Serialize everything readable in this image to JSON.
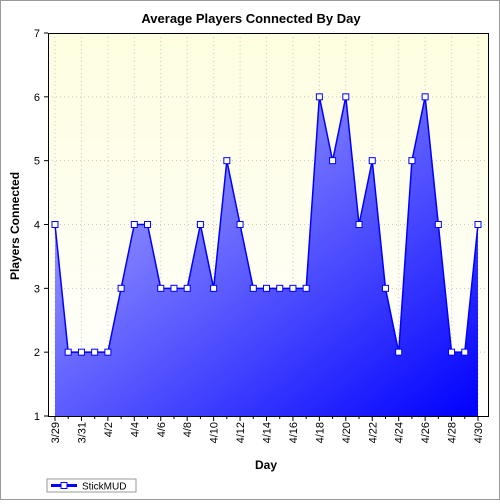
{
  "chart_data": {
    "type": "area",
    "title": "Average Players Connected By Day",
    "xlabel": "Day",
    "ylabel": "Players Connected",
    "ylim": [
      1,
      7
    ],
    "yticks": [
      1,
      2,
      3,
      4,
      5,
      6,
      7
    ],
    "x": [
      "3/29",
      "3/30",
      "3/31",
      "4/1",
      "4/2",
      "4/3",
      "4/4",
      "4/5",
      "4/6",
      "4/7",
      "4/8",
      "4/9",
      "4/10",
      "4/11",
      "4/12",
      "4/13",
      "4/14",
      "4/15",
      "4/16",
      "4/17",
      "4/18",
      "4/19",
      "4/20",
      "4/21",
      "4/22",
      "4/23",
      "4/24",
      "4/25",
      "4/26",
      "4/27",
      "4/28",
      "4/29",
      "4/30"
    ],
    "xtick_labels": [
      "3/29",
      "3/31",
      "4/2",
      "4/4",
      "4/6",
      "4/8",
      "4/10",
      "4/12",
      "4/14",
      "4/16",
      "4/18",
      "4/20",
      "4/22",
      "4/24",
      "4/26",
      "4/28",
      "4/30"
    ],
    "series": [
      {
        "name": "StickMUD",
        "values": [
          4,
          2,
          2,
          2,
          2,
          3,
          4,
          4,
          3,
          3,
          3,
          4,
          3,
          5,
          4,
          3,
          3,
          3,
          3,
          3,
          6,
          5,
          6,
          4,
          5,
          3,
          2,
          5,
          6,
          4,
          2,
          2,
          4
        ]
      }
    ],
    "grid": true,
    "legend_position": "bottom-left",
    "colors": {
      "plot_background": "#fefee0",
      "line": "#0000ff",
      "fill_light": "#b8b8ff",
      "fill_dark": "#0000ff",
      "marker_fill": "#ffffff"
    }
  }
}
